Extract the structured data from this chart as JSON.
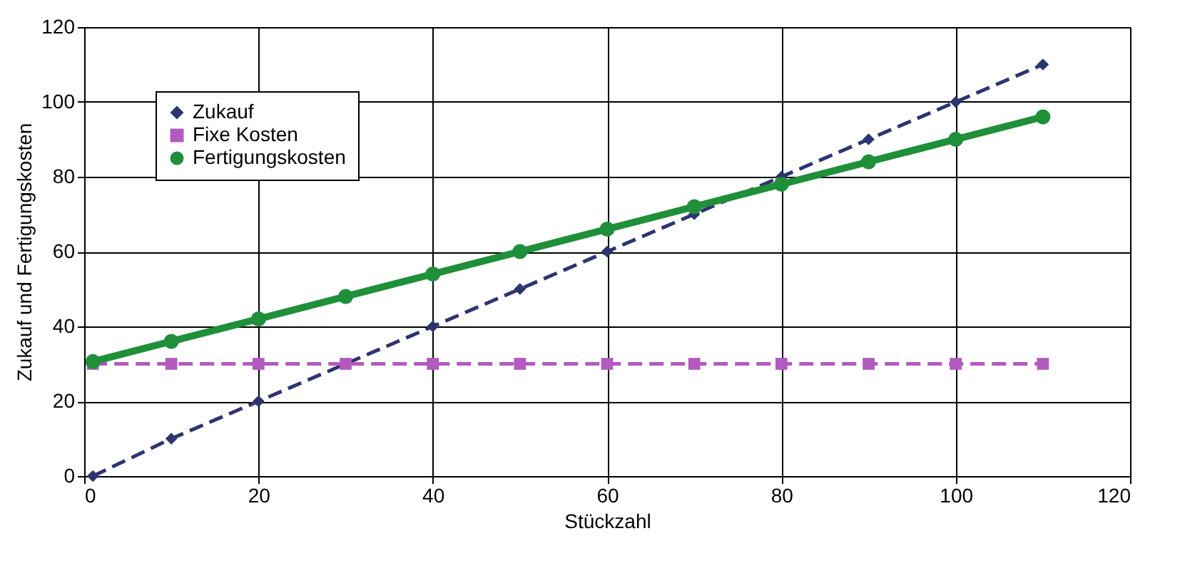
{
  "chart_data": {
    "type": "line",
    "xlabel": "Stückzahl",
    "ylabel": "Zukauf und Fertigungskosten",
    "xlim": [
      0,
      120
    ],
    "ylim": [
      0,
      120
    ],
    "xticks": [
      0,
      20,
      40,
      60,
      80,
      100,
      120
    ],
    "yticks": [
      0,
      20,
      40,
      60,
      80,
      100,
      120
    ],
    "grid": true,
    "legend": "top left",
    "x": [
      1,
      10,
      20,
      30,
      40,
      50,
      60,
      70,
      80,
      90,
      100,
      110
    ],
    "series": [
      {
        "name": "Zukauf",
        "color": "#2e3470",
        "marker": "diamond",
        "line_style": "dashed",
        "values": [
          0,
          10,
          20,
          30,
          40,
          50,
          60,
          70,
          80,
          90,
          100,
          110
        ]
      },
      {
        "name": "Fixe Kosten",
        "color": "#b35ac0",
        "marker": "square",
        "line_style": "dashed",
        "values": [
          30,
          30,
          30,
          30,
          30,
          30,
          30,
          30,
          30,
          30,
          30,
          30
        ]
      },
      {
        "name": "Fertigungskosten",
        "color": "#1f8f3a",
        "marker": "circle",
        "line_style": "solid",
        "values": [
          30.6,
          36,
          42,
          48,
          54,
          60,
          66,
          72,
          78,
          84,
          90,
          96
        ]
      }
    ]
  }
}
